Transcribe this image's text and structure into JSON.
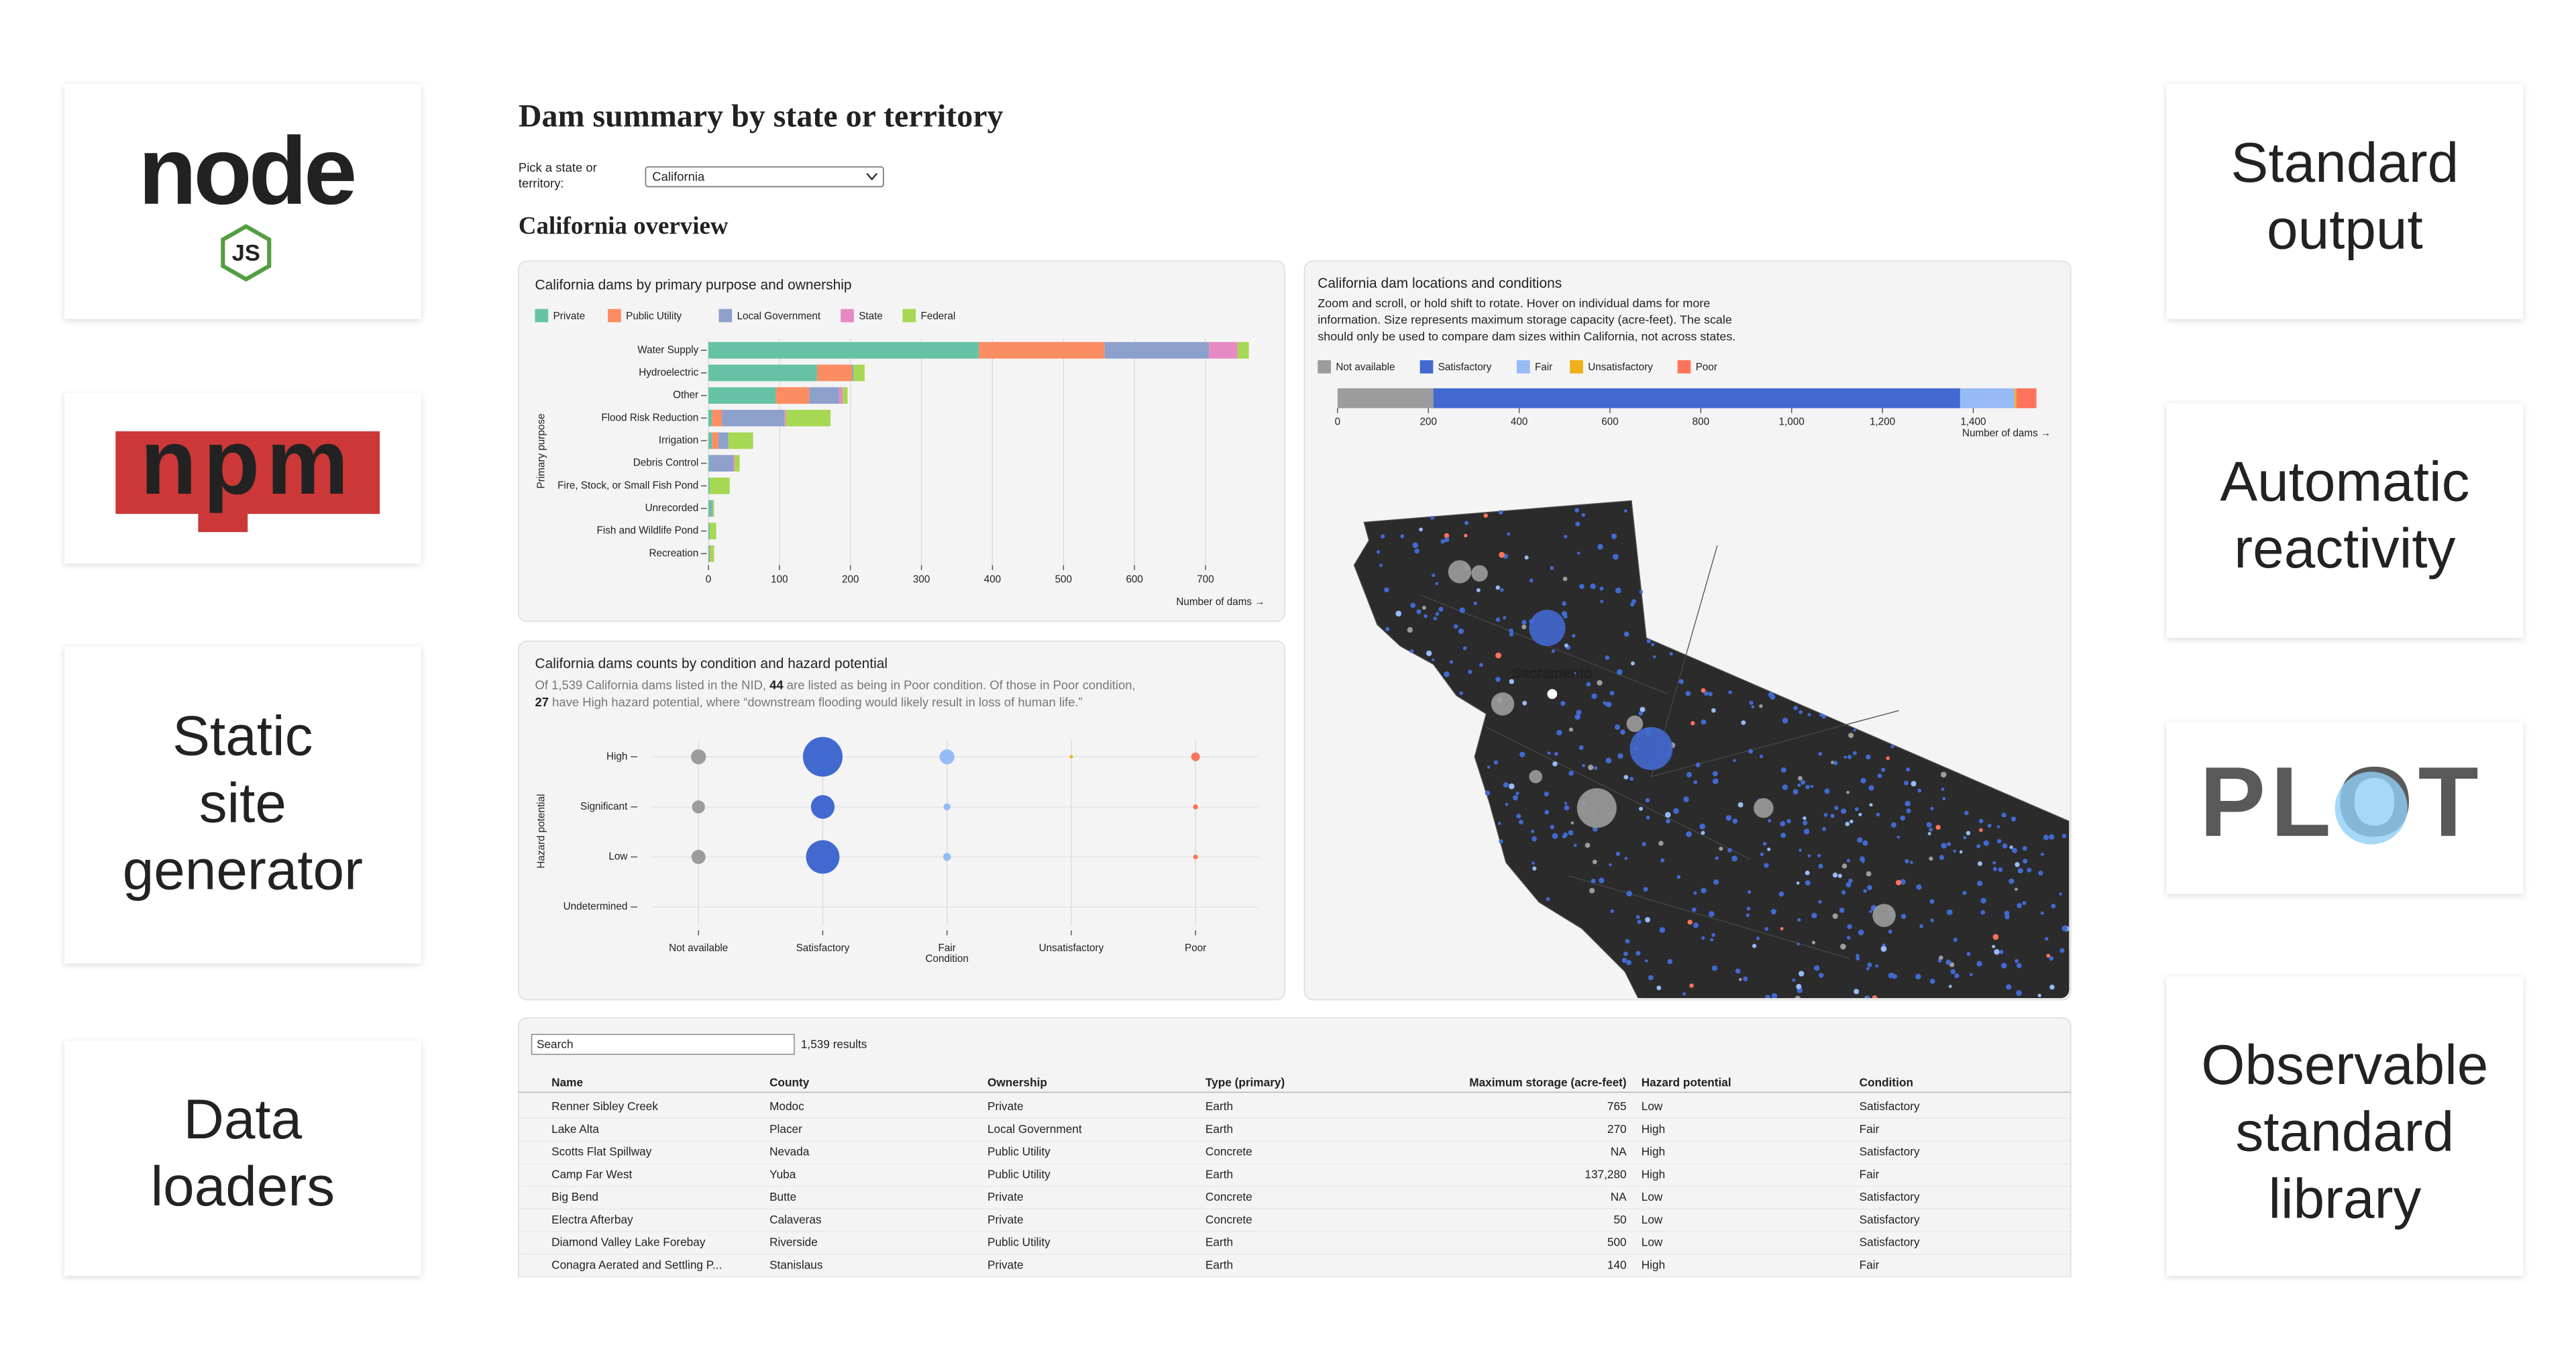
{
  "logos": {
    "node": "node",
    "js": "JS",
    "npm": "npm",
    "plot": "PLOT"
  },
  "features_left": [
    {
      "lines": [
        "Static",
        "site",
        "generator"
      ]
    },
    {
      "lines": [
        "Data",
        "loaders"
      ]
    }
  ],
  "features_right": [
    {
      "lines": [
        "Standard",
        "output"
      ]
    },
    {
      "lines": [
        "Automatic",
        "reactivity"
      ]
    },
    {
      "lines": [
        "Observable",
        "standard",
        "library"
      ]
    }
  ],
  "dashboard": {
    "title": "Dam summary by state or territory",
    "picker_label": [
      "Pick a state or",
      "territory:"
    ],
    "picker_value": "California",
    "section_title": "California overview",
    "table": {
      "search_placeholder": "Search",
      "result_count": "1,539 results",
      "columns": [
        "Name",
        "County",
        "Ownership",
        "Type (primary)",
        "Maximum storage (acre-feet)",
        "Hazard potential",
        "Condition"
      ],
      "rows": [
        [
          "Renner Sibley Creek",
          "Modoc",
          "Private",
          "Earth",
          "765",
          "Low",
          "Satisfactory"
        ],
        [
          "Lake Alta",
          "Placer",
          "Local Government",
          "Earth",
          "270",
          "High",
          "Fair"
        ],
        [
          "Scotts Flat Spillway",
          "Nevada",
          "Public Utility",
          "Concrete",
          "NA",
          "High",
          "Satisfactory"
        ],
        [
          "Camp Far West",
          "Yuba",
          "Public Utility",
          "Earth",
          "137,280",
          "High",
          "Fair"
        ],
        [
          "Big Bend",
          "Butte",
          "Private",
          "Concrete",
          "NA",
          "Low",
          "Satisfactory"
        ],
        [
          "Electra Afterbay",
          "Calaveras",
          "Private",
          "Concrete",
          "50",
          "Low",
          "Satisfactory"
        ],
        [
          "Diamond Valley Lake Forebay",
          "Riverside",
          "Public Utility",
          "Earth",
          "500",
          "Low",
          "Satisfactory"
        ],
        [
          "Conagra Aerated and Settling P...",
          "Stanislaus",
          "Private",
          "Earth",
          "140",
          "High",
          "Fair"
        ]
      ]
    }
  },
  "chart_data": [
    {
      "type": "bar",
      "orientation": "horizontal",
      "stacked": true,
      "title": "California dams by primary purpose and ownership",
      "categories": [
        "Water Supply",
        "Hydroelectric",
        "Other",
        "Flood Risk Reduction",
        "Irrigation",
        "Debris Control",
        "Fire, Stock, or Small Fish Pond",
        "Unrecorded",
        "Fish and Wildlife Pond",
        "Recreation"
      ],
      "series": [
        {
          "name": "Private",
          "color": "#66c2a5",
          "values": [
            381,
            153,
            95,
            5,
            5,
            2,
            2,
            4,
            2,
            2
          ]
        },
        {
          "name": "Public Utility",
          "color": "#fc8d62",
          "values": [
            177,
            49,
            47,
            14,
            9,
            0,
            0,
            0,
            0,
            1
          ]
        },
        {
          "name": "Local Government",
          "color": "#8da0cb",
          "values": [
            147,
            2,
            42,
            88,
            14,
            33,
            0,
            2,
            0,
            0
          ]
        },
        {
          "name": "State",
          "color": "#e78ac3",
          "values": [
            40,
            0,
            5,
            2,
            0,
            2,
            0,
            0,
            0,
            0
          ]
        },
        {
          "name": "Federal",
          "color": "#a6d854",
          "values": [
            16,
            16,
            7,
            63,
            35,
            7,
            28,
            2,
            9,
            5
          ]
        }
      ],
      "xlim": [
        0,
        785
      ],
      "xticks": [
        0,
        100,
        200,
        300,
        400,
        500,
        600,
        700
      ],
      "x_label": "Number of dams →",
      "y_label": "Primary purpose",
      "grid": true
    },
    {
      "type": "dot",
      "title": "California dams counts by condition and hazard potential",
      "subtitle_lines": [
        [
          "Of 1,539 California dams listed in the NID, ",
          "44",
          " are listed as being in Poor condition. Of those in Poor condition,"
        ],
        [
          "27",
          " have High hazard potential, where “downstream flooding would likely result in loss of human life.”"
        ]
      ],
      "categories": [
        "Not available",
        "Satisfactory",
        "Fair",
        "Unsatisfactory",
        "Poor"
      ],
      "colors": [
        "#9c9c9c",
        "#4269d0",
        "#97bbf5",
        "#efb118",
        "#ff725c"
      ],
      "series": [
        {
          "name": "High",
          "values": [
            80,
            560,
            80,
            4,
            27
          ]
        },
        {
          "name": "Significant",
          "values": [
            60,
            200,
            18,
            0,
            9
          ]
        },
        {
          "name": "Low",
          "values": [
            71,
            400,
            22,
            0,
            8
          ]
        },
        {
          "name": "Undetermined",
          "values": [
            0,
            0,
            0,
            0,
            0
          ]
        }
      ],
      "x_label": "Condition",
      "y_label": "Hazard potential",
      "grid": true
    },
    {
      "type": "map",
      "title": "California dam locations and conditions",
      "subtitle_lines": [
        "Zoom and scroll, or hold shift to rotate. Hover on individual dams for more",
        "information. Size represents maximum storage capacity (acre-feet). The scale",
        "should only be used to compare dam sizes within California, not across states."
      ],
      "series": [
        {
          "name": "Not available",
          "color": "#9c9c9c",
          "values": [
            211
          ]
        },
        {
          "name": "Satisfactory",
          "color": "#4269d0",
          "values": [
            1160
          ]
        },
        {
          "name": "Fair",
          "color": "#97bbf5",
          "values": [
            120
          ]
        },
        {
          "name": "Unsatisfactory",
          "color": "#efb118",
          "values": [
            4
          ]
        },
        {
          "name": "Poor",
          "color": "#ff725c",
          "values": [
            44
          ]
        }
      ],
      "xlim": [
        0,
        1570
      ],
      "xticks": [
        0,
        200,
        400,
        600,
        800,
        {
          "value": 1000,
          "label": "1,000"
        },
        {
          "value": 1200,
          "label": "1,200"
        },
        {
          "value": 1400,
          "label": "1,400"
        }
      ],
      "x_label": "Number of dams →",
      "map_label": "Sacramento"
    }
  ]
}
